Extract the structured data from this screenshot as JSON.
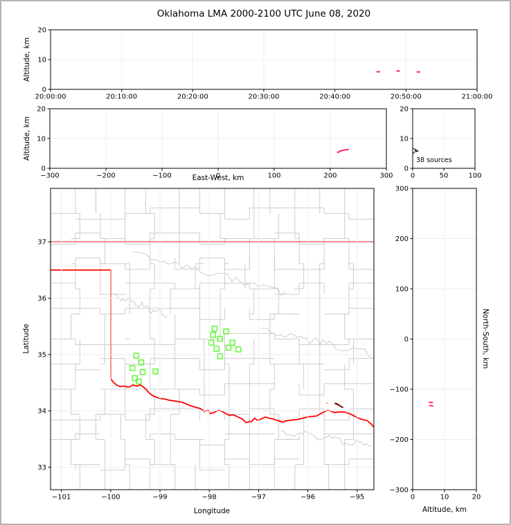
{
  "figure": {
    "title": "Oklahoma LMA 2000-2100 UTC June 08, 2020"
  },
  "colors": {
    "axis": "#000000",
    "grid": "#ededed",
    "county": "#cccccc",
    "state_border": "#ff0000",
    "station": "#66f73d",
    "source_pink": "#ff1878",
    "source_dark": "#7a0c0c",
    "source_orange": "#ffaa55",
    "histogram_line": "#000000",
    "figure_border": "#b3b3b3"
  },
  "chart_data": [
    {
      "id": "time_height",
      "type": "scatter",
      "xlabel": "",
      "ylabel": "Altitude, km",
      "xlim": [
        0,
        60
      ],
      "ylim": [
        0,
        20
      ],
      "xticks": [
        {
          "v": 0,
          "label": "20:00:00"
        },
        {
          "v": 10,
          "label": "20:10:00"
        },
        {
          "v": 20,
          "label": "20:20:00"
        },
        {
          "v": 30,
          "label": "20:30:00"
        },
        {
          "v": 40,
          "label": "20:40:00"
        },
        {
          "v": 50,
          "label": "20:50:00"
        },
        {
          "v": 60,
          "label": "21:00:00"
        }
      ],
      "yticks": [
        0,
        10,
        20
      ],
      "points_time_alt": [
        {
          "time": "20:46:05",
          "minutes": 46.1,
          "alt_km": 5.9
        },
        {
          "time": "20:48:55",
          "minutes": 48.9,
          "alt_km": 6.15
        },
        {
          "time": "20:51:45",
          "minutes": 51.75,
          "alt_km": 5.85
        }
      ]
    },
    {
      "id": "ew_height",
      "type": "scatter",
      "xlabel": "East-West, km",
      "ylabel": "Altitude, km",
      "xlim": [
        -300,
        300
      ],
      "ylim": [
        0,
        20
      ],
      "xticks": [
        -300,
        -200,
        -100,
        0,
        100,
        200,
        300
      ],
      "yticks": [
        0,
        10,
        20
      ],
      "points_ew_alt": [
        [
          214,
          5.4
        ],
        [
          217,
          5.7
        ],
        [
          219,
          5.85
        ],
        [
          223,
          6.05
        ],
        [
          226,
          6.2
        ],
        [
          229,
          6.25
        ],
        [
          231,
          6.3
        ]
      ]
    },
    {
      "id": "alt_histogram",
      "type": "line",
      "annotation": "38 sources",
      "xlabel": "",
      "ylabel": "",
      "xlim": [
        0,
        100
      ],
      "ylim": [
        0,
        20
      ],
      "xticks": [
        0,
        50,
        100
      ],
      "yticks": [
        0,
        10,
        20
      ],
      "profile_count_alt": [
        [
          0,
          0
        ],
        [
          0,
          4.7
        ],
        [
          1,
          5.1
        ],
        [
          3,
          5.5
        ],
        [
          9,
          5.8
        ],
        [
          4,
          6.0
        ],
        [
          6,
          6.25
        ],
        [
          2,
          6.5
        ],
        [
          0,
          6.8
        ],
        [
          0,
          20
        ]
      ]
    },
    {
      "id": "plan_view",
      "type": "scatter",
      "xlabel": "Longitude",
      "ylabel": "Latitude",
      "xlim": [
        -101.22,
        -94.66
      ],
      "ylim": [
        32.6,
        37.95
      ],
      "xticks": [
        -101,
        -100,
        -99,
        -98,
        -97,
        -96,
        -95
      ],
      "yticks": [
        33,
        34,
        35,
        36,
        37
      ],
      "stations_lon_lat": [
        [
          -97.89,
          35.46
        ],
        [
          -97.66,
          35.41
        ],
        [
          -97.92,
          35.35
        ],
        [
          -97.78,
          35.28
        ],
        [
          -97.96,
          35.21
        ],
        [
          -97.53,
          35.21
        ],
        [
          -97.61,
          35.12
        ],
        [
          -97.85,
          35.1
        ],
        [
          -97.41,
          35.09
        ],
        [
          -97.78,
          34.97
        ],
        [
          -99.48,
          34.98
        ],
        [
          -99.38,
          34.86
        ],
        [
          -99.56,
          34.76
        ],
        [
          -99.35,
          34.69
        ],
        [
          -99.09,
          34.7
        ],
        [
          -99.51,
          34.58
        ],
        [
          -99.43,
          34.52
        ]
      ],
      "points_dark_lon_lat": [
        [
          -95.44,
          34.13
        ],
        [
          -95.42,
          34.125
        ],
        [
          -95.4,
          34.115
        ],
        [
          -95.38,
          34.105
        ],
        [
          -95.36,
          34.095
        ],
        [
          -95.33,
          34.08
        ],
        [
          -95.3,
          34.065
        ]
      ],
      "points_orange_lon_lat": [
        [
          -95.61,
          34.135
        ]
      ],
      "state_border_segments": [
        [
          [
            -101.22,
            37.0
          ],
          [
            -94.66,
            37.0
          ]
        ],
        [
          [
            -101.22,
            36.5
          ],
          [
            -100.0,
            36.5
          ]
        ],
        [
          [
            -100.0,
            36.5
          ],
          [
            -100.0,
            34.57
          ],
          [
            -99.95,
            34.51
          ],
          [
            -99.88,
            34.46
          ],
          [
            -99.81,
            34.43
          ],
          [
            -99.72,
            34.44
          ],
          [
            -99.66,
            34.42
          ],
          [
            -99.6,
            34.43
          ],
          [
            -99.55,
            34.46
          ],
          [
            -99.47,
            34.44
          ],
          [
            -99.4,
            34.46
          ],
          [
            -99.36,
            34.44
          ],
          [
            -99.28,
            34.38
          ],
          [
            -99.21,
            34.31
          ],
          [
            -99.13,
            34.26
          ],
          [
            -99.0,
            34.22
          ],
          [
            -98.9,
            34.21
          ],
          [
            -98.82,
            34.19
          ],
          [
            -98.68,
            34.17
          ],
          [
            -98.54,
            34.15
          ],
          [
            -98.46,
            34.12
          ],
          [
            -98.38,
            34.09
          ],
          [
            -98.3,
            34.07
          ],
          [
            -98.18,
            34.04
          ],
          [
            -98.1,
            33.99
          ],
          [
            -98.02,
            34.01
          ],
          [
            -97.98,
            33.95
          ],
          [
            -97.91,
            33.97
          ],
          [
            -97.81,
            34.01
          ],
          [
            -97.74,
            33.99
          ],
          [
            -97.7,
            33.97
          ],
          [
            -97.64,
            33.94
          ],
          [
            -97.59,
            33.92
          ],
          [
            -97.52,
            33.93
          ],
          [
            -97.46,
            33.91
          ],
          [
            -97.39,
            33.88
          ],
          [
            -97.32,
            33.85
          ],
          [
            -97.28,
            33.81
          ],
          [
            -97.25,
            33.79
          ],
          [
            -97.19,
            33.81
          ],
          [
            -97.14,
            33.81
          ],
          [
            -97.1,
            33.85
          ],
          [
            -97.08,
            33.87
          ],
          [
            -97.04,
            33.84
          ],
          [
            -97.0,
            33.83
          ],
          [
            -96.94,
            33.86
          ],
          [
            -96.86,
            33.89
          ],
          [
            -96.79,
            33.87
          ],
          [
            -96.72,
            33.86
          ],
          [
            -96.62,
            33.83
          ],
          [
            -96.52,
            33.8
          ],
          [
            -96.44,
            33.82
          ],
          [
            -96.38,
            33.83
          ],
          [
            -96.28,
            33.84
          ],
          [
            -96.2,
            33.85
          ],
          [
            -96.1,
            33.87
          ],
          [
            -96.02,
            33.89
          ],
          [
            -95.92,
            33.9
          ],
          [
            -95.82,
            33.91
          ],
          [
            -95.72,
            33.96
          ],
          [
            -95.6,
            34.01
          ],
          [
            -95.52,
            33.99
          ],
          [
            -95.46,
            33.97
          ],
          [
            -95.36,
            33.98
          ],
          [
            -95.26,
            33.98
          ],
          [
            -95.16,
            33.95
          ],
          [
            -95.08,
            33.92
          ],
          [
            -95.0,
            33.88
          ],
          [
            -94.94,
            33.86
          ],
          [
            -94.86,
            33.84
          ],
          [
            -94.8,
            33.83
          ],
          [
            -94.72,
            33.77
          ],
          [
            -94.66,
            33.71
          ]
        ]
      ],
      "map_layers": [
        "county-borders-gray",
        "state-border-red",
        "stations-green-squares",
        "lma-sources"
      ]
    },
    {
      "id": "ns_height",
      "type": "scatter",
      "xlabel": "Altitude, km",
      "ylabel": "North-South, km",
      "xlim": [
        0,
        20
      ],
      "ylim": [
        -300,
        300
      ],
      "xticks": [
        0,
        10,
        20
      ],
      "yticks": [
        -300,
        -200,
        -100,
        0,
        100,
        200,
        300
      ],
      "points_alt_ns": [
        [
          5.4,
          -126
        ],
        [
          6.0,
          -126.5
        ],
        [
          5.5,
          -132.5
        ],
        [
          6.1,
          -133
        ]
      ]
    }
  ]
}
